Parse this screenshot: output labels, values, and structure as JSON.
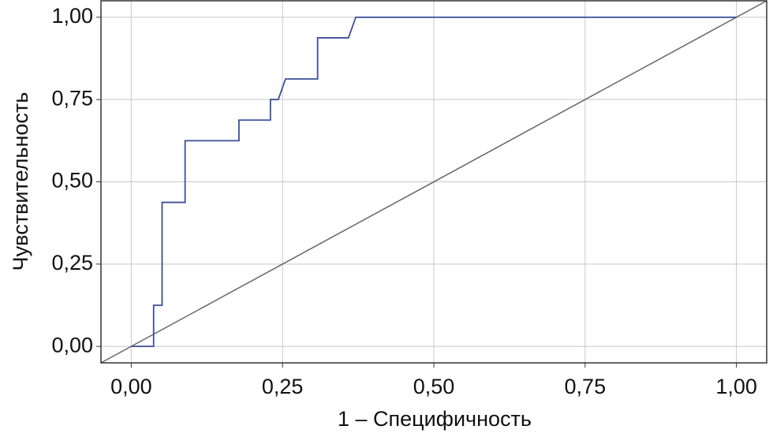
{
  "chart_data": {
    "type": "line",
    "xlabel": "1 – Специфичность",
    "ylabel": "Чувствительность",
    "xlim": [
      -0.05,
      1.05
    ],
    "ylim": [
      -0.05,
      1.05
    ],
    "xticks": [
      {
        "value": 0,
        "label": "0,00"
      },
      {
        "value": 0.25,
        "label": "0,25"
      },
      {
        "value": 0.5,
        "label": "0,50"
      },
      {
        "value": 0.75,
        "label": "0,75"
      },
      {
        "value": 1,
        "label": "1,00"
      }
    ],
    "yticks": [
      {
        "value": 0,
        "label": "0,00"
      },
      {
        "value": 0.25,
        "label": "0,25"
      },
      {
        "value": 0.5,
        "label": "0,50"
      },
      {
        "value": 0.75,
        "label": "0,75"
      },
      {
        "value": 1,
        "label": "1,00"
      }
    ],
    "grid": true,
    "diagonal_color": "#666666",
    "series": [
      {
        "color": "#3b4f9a",
        "x": [
          0,
          0.037,
          0.037,
          0.051,
          0.051,
          0.089,
          0.089,
          0.178,
          0.178,
          0.23,
          0.23,
          0.243,
          0.255,
          0.308,
          0.308,
          0.359,
          0.371,
          1
        ],
        "values": [
          0,
          0,
          0.125,
          0.125,
          0.4375,
          0.4375,
          0.625,
          0.625,
          0.6875,
          0.6875,
          0.75,
          0.75,
          0.8125,
          0.8125,
          0.9375,
          0.9375,
          1,
          1
        ]
      }
    ]
  }
}
